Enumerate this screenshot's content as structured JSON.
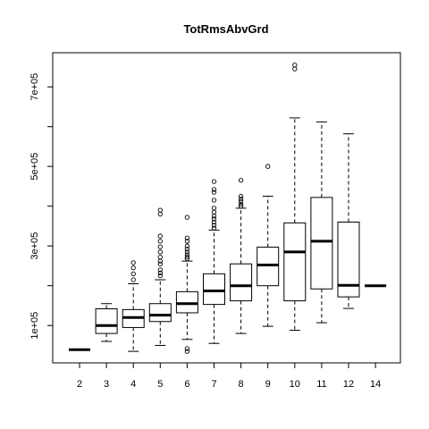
{
  "chart_data": {
    "type": "boxplot",
    "title": "TotRmsAbvGrd",
    "xlabel": "",
    "ylabel": "",
    "categories": [
      "2",
      "3",
      "4",
      "5",
      "6",
      "7",
      "8",
      "9",
      "10",
      "11",
      "12",
      "14"
    ],
    "y_ticks": [
      100000,
      300000,
      500000,
      700000
    ],
    "y_tick_labels": [
      "1e+05",
      "3e+05",
      "5e+05",
      "7e+05"
    ],
    "ylim": [
      0,
      770000
    ],
    "grid": false,
    "boxes": [
      {
        "category": "2",
        "whisker_low": 39300,
        "q1": 39300,
        "median": 39300,
        "q3": 39300,
        "whisker_high": 39300,
        "outliers": []
      },
      {
        "category": "3",
        "whisker_low": 60000,
        "q1": 80000,
        "median": 100000,
        "q3": 142000,
        "whisker_high": 155000,
        "outliers": []
      },
      {
        "category": "4",
        "whisker_low": 35000,
        "q1": 95000,
        "median": 120000,
        "q3": 140000,
        "whisker_high": 205000,
        "outliers": [
          215000,
          230000,
          245000,
          258000
        ]
      },
      {
        "category": "5",
        "whisker_low": 50000,
        "q1": 110000,
        "median": 126000,
        "q3": 155000,
        "whisker_high": 215000,
        "outliers": [
          225000,
          232000,
          240000,
          255000,
          262000,
          272000,
          285000,
          298000,
          312000,
          325000,
          380000,
          390000
        ]
      },
      {
        "category": "6",
        "whisker_low": 65000,
        "q1": 132000,
        "median": 155000,
        "q3": 185000,
        "whisker_high": 262000,
        "outliers": [
          35000,
          42000,
          268000,
          272000,
          278000,
          285000,
          292000,
          300000,
          312000,
          320000,
          372000
        ]
      },
      {
        "category": "7",
        "whisker_low": 55000,
        "q1": 153000,
        "median": 187000,
        "q3": 230000,
        "whisker_high": 340000,
        "outliers": [
          345000,
          352000,
          360000,
          368000,
          375000,
          385000,
          395000,
          415000,
          435000,
          442000,
          462000
        ]
      },
      {
        "category": "8",
        "whisker_low": 80000,
        "q1": 162000,
        "median": 200000,
        "q3": 255000,
        "whisker_high": 395000,
        "outliers": [
          400000,
          405000,
          412000,
          418000,
          425000,
          465000
        ]
      },
      {
        "category": "9",
        "whisker_low": 98000,
        "q1": 200000,
        "median": 252000,
        "q3": 297000,
        "whisker_high": 425000,
        "outliers": [
          500000
        ]
      },
      {
        "category": "10",
        "whisker_low": 88000,
        "q1": 162000,
        "median": 285000,
        "q3": 358000,
        "whisker_high": 622000,
        "outliers": [
          745000,
          755000
        ]
      },
      {
        "category": "11",
        "whisker_low": 107000,
        "q1": 192000,
        "median": 312000,
        "q3": 422000,
        "whisker_high": 612000,
        "outliers": []
      },
      {
        "category": "12",
        "whisker_low": 143000,
        "q1": 172000,
        "median": 201000,
        "q3": 360000,
        "whisker_high": 582000,
        "outliers": []
      },
      {
        "category": "14",
        "whisker_low": 200000,
        "q1": 200000,
        "median": 200000,
        "q3": 200000,
        "whisker_high": 200000,
        "outliers": []
      }
    ]
  }
}
